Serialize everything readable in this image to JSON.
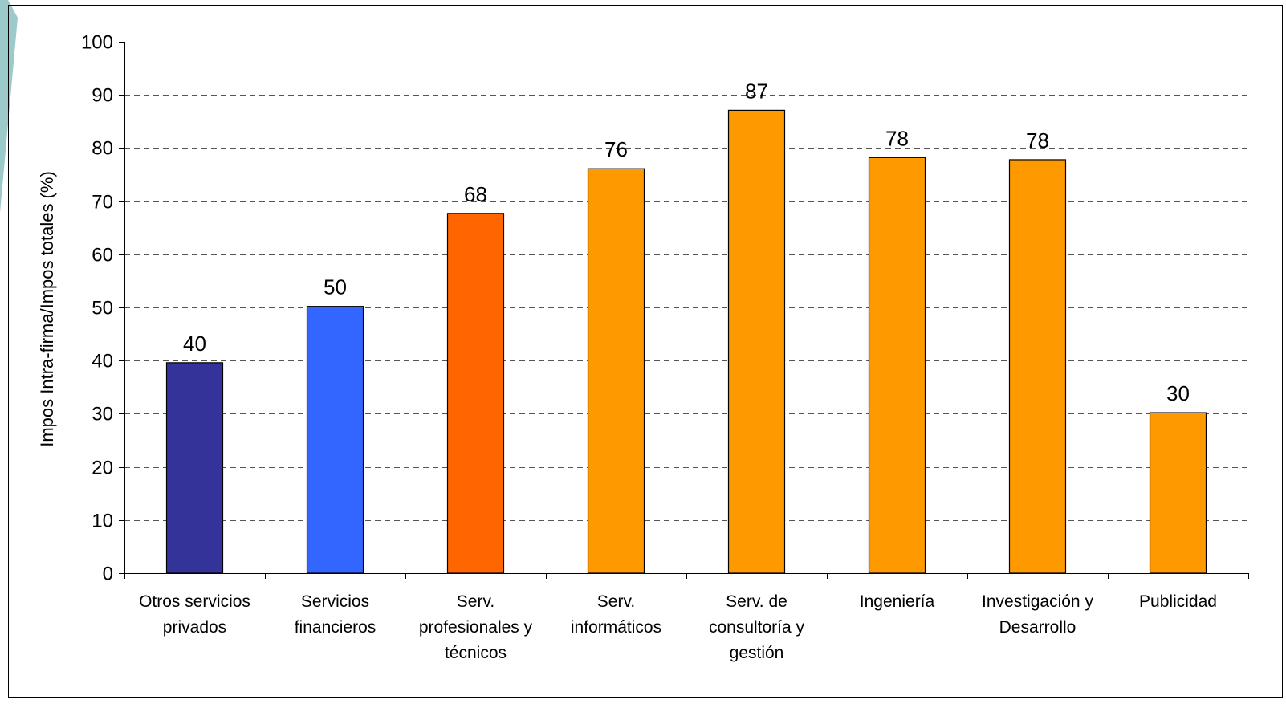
{
  "chart_data": {
    "type": "bar",
    "title": "",
    "xlabel": "",
    "ylabel": "Impos Intra-firma/Impos totales (%)",
    "ylim": [
      0,
      100
    ],
    "yticks": [
      0,
      10,
      20,
      30,
      40,
      50,
      60,
      70,
      80,
      90,
      100
    ],
    "grid": "horizontal dashed",
    "categories": [
      [
        "Otros servicios",
        "privados"
      ],
      [
        "Servicios",
        "financieros"
      ],
      [
        "Serv.",
        "profesionales y",
        "técnicos"
      ],
      [
        "Serv.",
        "informáticos"
      ],
      [
        "Serv. de",
        "consultoría y",
        "gestión"
      ],
      [
        "Ingeniería"
      ],
      [
        "Investigación y",
        "Desarrollo"
      ],
      [
        "Publicidad"
      ]
    ],
    "values": [
      39.6,
      50.2,
      67.7,
      76.1,
      87.1,
      78.2,
      77.8,
      30.2
    ],
    "data_labels": [
      "40",
      "50",
      "68",
      "76",
      "87",
      "78",
      "78",
      "30"
    ],
    "bar_colors": [
      "#333399",
      "#3366FF",
      "#FF6600",
      "#FF9900",
      "#FF9900",
      "#FF9900",
      "#FF9900",
      "#FF9900"
    ],
    "grid_color": "#555555",
    "accent_color": "#9CC9C9"
  }
}
